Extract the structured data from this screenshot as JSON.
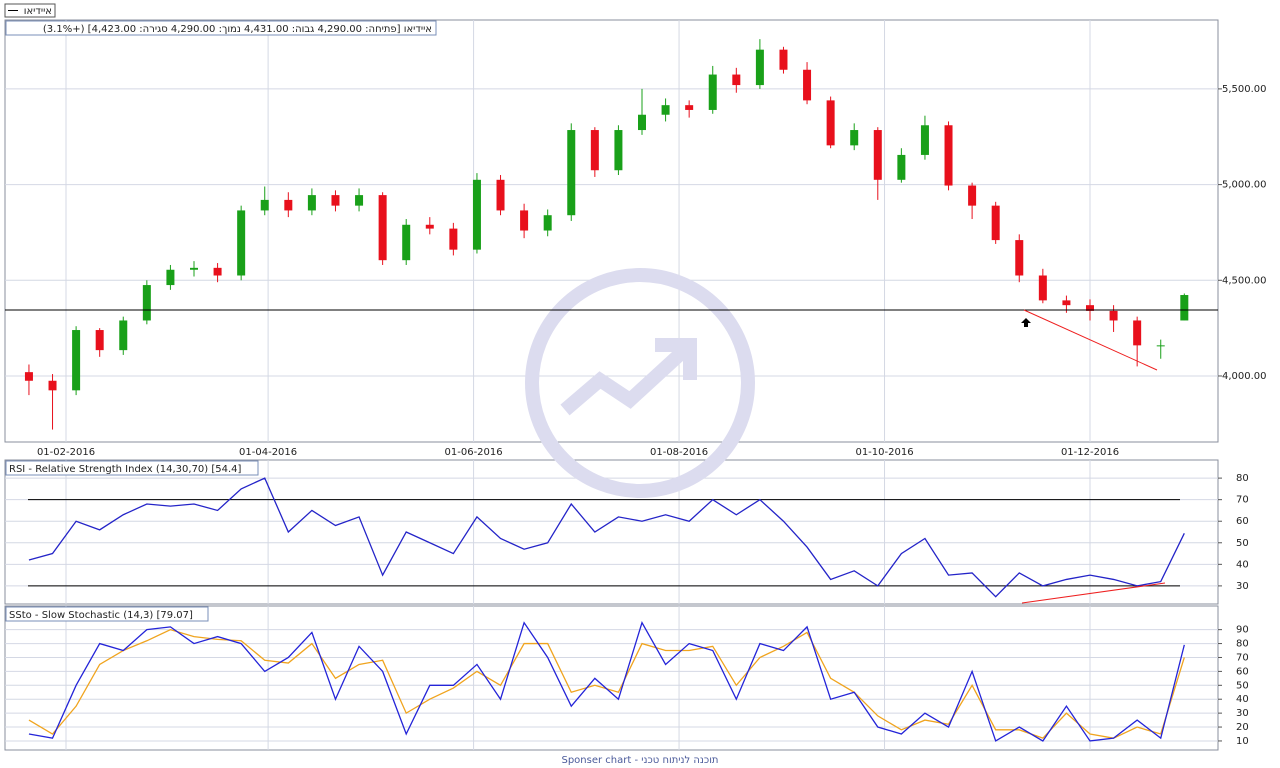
{
  "symbol": "איידיאו",
  "footer": "Sponser chart - תוכנה לניתוח טכני",
  "chart_data": [
    {
      "type": "candlestick",
      "title": "איידיאו [פתיחה: 4,290.00  גבוה: 4,431.00  נמוך: 4,290.00  סגירה: 4,423.00] (+3.1%)",
      "x": [
        "21-01-2016",
        "28-01-2016",
        "04-02-2016",
        "11-02-2016",
        "18-02-2016",
        "25-02-2016",
        "03-03-2016",
        "10-03-2016",
        "17-03-2016",
        "24-03-2016",
        "31-03-2016",
        "07-04-2016",
        "14-04-2016",
        "21-04-2016",
        "28-04-2016",
        "05-05-2016",
        "12-05-2016",
        "19-05-2016",
        "26-05-2016",
        "02-06-2016",
        "09-06-2016",
        "16-06-2016",
        "23-06-2016",
        "30-06-2016",
        "07-07-2016",
        "14-07-2016",
        "21-07-2016",
        "28-07-2016",
        "04-08-2016",
        "11-08-2016",
        "18-08-2016",
        "25-08-2016",
        "01-09-2016",
        "08-09-2016",
        "15-09-2016",
        "22-09-2016",
        "29-09-2016",
        "06-10-2016",
        "13-10-2016",
        "20-10-2016",
        "27-10-2016",
        "03-11-2016",
        "10-11-2016",
        "17-11-2016",
        "24-11-2016",
        "01-12-2016",
        "08-12-2016",
        "15-12-2016",
        "22-12-2016",
        "29-12-2016"
      ],
      "open": [
        4020,
        3975,
        3925,
        4240,
        4135,
        4290,
        4475,
        4555,
        4565,
        4525,
        4865,
        4920,
        4865,
        4945,
        4890,
        4945,
        4605,
        4790,
        4770,
        4660,
        5025,
        4865,
        4760,
        4840,
        5285,
        5075,
        5285,
        5365,
        5415,
        5390,
        5575,
        5520,
        5705,
        5600,
        5440,
        5205,
        5285,
        5025,
        5155,
        5310,
        4995,
        4890,
        4710,
        4525,
        4395,
        4370,
        4340,
        4290,
        4160,
        4290
      ],
      "high": [
        4060,
        4010,
        4260,
        4250,
        4310,
        4500,
        4580,
        4600,
        4590,
        4890,
        4990,
        4960,
        4980,
        4970,
        4980,
        4960,
        4820,
        4830,
        4800,
        5060,
        5050,
        4900,
        4870,
        5320,
        5300,
        5310,
        5500,
        5450,
        5440,
        5620,
        5610,
        5760,
        5720,
        5640,
        5460,
        5320,
        5300,
        5190,
        5360,
        5330,
        5010,
        4910,
        4740,
        4560,
        4420,
        4400,
        4370,
        4310,
        4190,
        4431
      ],
      "low": [
        3900,
        3720,
        3900,
        4100,
        4110,
        4270,
        4450,
        4520,
        4490,
        4500,
        4840,
        4830,
        4840,
        4860,
        4860,
        4580,
        4580,
        4740,
        4630,
        4640,
        4840,
        4720,
        4730,
        4810,
        5040,
        5050,
        5260,
        5330,
        5350,
        5370,
        5480,
        5500,
        5580,
        5420,
        5190,
        5180,
        4920,
        5010,
        5130,
        4970,
        4820,
        4690,
        4490,
        4380,
        4330,
        4290,
        4230,
        4050,
        4090,
        4290
      ],
      "close": [
        3975,
        3925,
        4240,
        4135,
        4290,
        4475,
        4555,
        4565,
        4525,
        4865,
        4920,
        4865,
        4945,
        4890,
        4945,
        4605,
        4790,
        4770,
        4660,
        5025,
        4865,
        4760,
        4840,
        5285,
        5075,
        5285,
        5365,
        5415,
        5390,
        5575,
        5520,
        5705,
        5600,
        5440,
        5205,
        5285,
        5025,
        5155,
        5310,
        4995,
        4890,
        4710,
        4525,
        4395,
        4370,
        4340,
        4290,
        4160,
        4160,
        4423
      ],
      "up_color": "#19a019",
      "down_color": "#e8101c",
      "ylim": [
        3655,
        5860
      ],
      "yticks": [
        {
          "value": 4000,
          "label": "4,000.00"
        },
        {
          "value": 4500,
          "label": "4,500.00"
        },
        {
          "value": 5000,
          "label": "5,000.00"
        },
        {
          "value": 5500,
          "label": "5,500.00"
        }
      ],
      "xticks": [
        "01-02-2016",
        "01-04-2016",
        "01-06-2016",
        "01-08-2016",
        "01-10-2016",
        "01-12-2016"
      ],
      "grid": true
    },
    {
      "type": "line",
      "title": "RSI - Relative Strength Index (14,30,70) [54.4]",
      "x": [
        "21-01-2016",
        "28-01-2016",
        "04-02-2016",
        "11-02-2016",
        "18-02-2016",
        "25-02-2016",
        "03-03-2016",
        "10-03-2016",
        "17-03-2016",
        "24-03-2016",
        "31-03-2016",
        "07-04-2016",
        "14-04-2016",
        "21-04-2016",
        "28-04-2016",
        "05-05-2016",
        "12-05-2016",
        "19-05-2016",
        "26-05-2016",
        "02-06-2016",
        "09-06-2016",
        "16-06-2016",
        "23-06-2016",
        "30-06-2016",
        "07-07-2016",
        "14-07-2016",
        "21-07-2016",
        "28-07-2016",
        "04-08-2016",
        "11-08-2016",
        "18-08-2016",
        "25-08-2016",
        "01-09-2016",
        "08-09-2016",
        "15-09-2016",
        "22-09-2016",
        "29-09-2016",
        "06-10-2016",
        "13-10-2016",
        "20-10-2016",
        "27-10-2016",
        "03-11-2016",
        "10-11-2016",
        "17-11-2016",
        "24-11-2016",
        "01-12-2016",
        "08-12-2016",
        "15-12-2016",
        "22-12-2016",
        "29-12-2016"
      ],
      "series": [
        {
          "color": "#2424c8",
          "values": [
            42,
            45,
            60,
            56,
            63,
            68,
            67,
            68,
            65,
            75,
            80,
            55,
            65,
            58,
            62,
            35,
            55,
            50,
            45,
            62,
            52,
            47,
            50,
            68,
            55,
            62,
            60,
            63,
            60,
            70,
            63,
            70,
            60,
            48,
            33,
            37,
            30,
            45,
            52,
            35,
            36,
            25,
            36,
            30,
            33,
            35,
            33,
            30,
            32,
            54.4
          ]
        }
      ],
      "levels": [
        30,
        70
      ],
      "ylim": [
        21.6,
        88.4
      ],
      "yticks": [
        30,
        40,
        50,
        60,
        70,
        80
      ],
      "grid": true
    },
    {
      "type": "line",
      "title": "SSto - Slow Stochastic (14,3) [79.07]",
      "x": [
        "21-01-2016",
        "28-01-2016",
        "04-02-2016",
        "11-02-2016",
        "18-02-2016",
        "25-02-2016",
        "03-03-2016",
        "10-03-2016",
        "17-03-2016",
        "24-03-2016",
        "31-03-2016",
        "07-04-2016",
        "14-04-2016",
        "21-04-2016",
        "28-04-2016",
        "05-05-2016",
        "12-05-2016",
        "19-05-2016",
        "26-05-2016",
        "02-06-2016",
        "09-06-2016",
        "16-06-2016",
        "23-06-2016",
        "30-06-2016",
        "07-07-2016",
        "14-07-2016",
        "21-07-2016",
        "28-07-2016",
        "04-08-2016",
        "11-08-2016",
        "18-08-2016",
        "25-08-2016",
        "01-09-2016",
        "08-09-2016",
        "15-09-2016",
        "22-09-2016",
        "29-09-2016",
        "06-10-2016",
        "13-10-2016",
        "20-10-2016",
        "27-10-2016",
        "03-11-2016",
        "10-11-2016",
        "17-11-2016",
        "24-11-2016",
        "01-12-2016",
        "08-12-2016",
        "15-12-2016",
        "22-12-2016",
        "29-12-2016"
      ],
      "series": [
        {
          "color": "#f0a41e",
          "values": [
            25,
            15,
            35,
            65,
            75,
            82,
            90,
            85,
            83,
            82,
            68,
            66,
            80,
            55,
            65,
            68,
            30,
            40,
            48,
            60,
            50,
            80,
            80,
            45,
            50,
            45,
            80,
            75,
            75,
            78,
            50,
            70,
            78,
            88,
            55,
            45,
            28,
            18,
            25,
            22,
            50,
            18,
            18,
            12,
            30,
            15,
            12,
            20,
            15,
            70
          ]
        },
        {
          "color": "#2424d8",
          "values": [
            15,
            12,
            50,
            80,
            75,
            90,
            92,
            80,
            85,
            80,
            60,
            70,
            88,
            40,
            78,
            60,
            15,
            50,
            50,
            65,
            40,
            95,
            70,
            35,
            55,
            40,
            95,
            65,
            80,
            75,
            40,
            80,
            75,
            92,
            40,
            45,
            20,
            15,
            30,
            20,
            60,
            10,
            20,
            10,
            35,
            10,
            12,
            25,
            12,
            79.07
          ]
        }
      ],
      "ylim": [
        3.5,
        107
      ],
      "yticks": [
        10,
        20,
        30,
        40,
        50,
        60,
        70,
        80,
        90
      ],
      "grid": true
    }
  ]
}
